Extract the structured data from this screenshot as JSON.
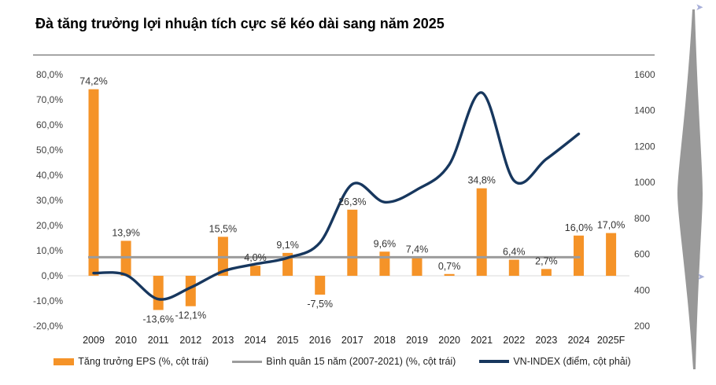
{
  "title": "Đà tăng trưởng lợi nhuận tích cực sẽ kéo dài sang năm 2025",
  "legend": {
    "items": [
      {
        "label": "Tăng trưởng EPS (%, cột trái)"
      },
      {
        "label": "Bình quân 15 năm (2007-2021) (%, cột trái)"
      },
      {
        "label": "VN-INDEX (điểm, cột phải)"
      }
    ]
  },
  "chart_data": {
    "type": "bar+line dual-axis combo",
    "title": "Đà tăng trưởng lợi nhuận tích cực sẽ kéo dài sang năm 2025",
    "categories": [
      "2009",
      "2010",
      "2011",
      "2012",
      "2013",
      "2014",
      "2015",
      "2016",
      "2017",
      "2018",
      "2019",
      "2020",
      "2021",
      "2022",
      "2023",
      "2024",
      "2025F"
    ],
    "series": [
      {
        "name": "Tăng trưởng EPS (%, cột trái)",
        "type": "bar",
        "axis": "left",
        "unit": "%",
        "color": "#F59328",
        "values": [
          74.2,
          13.9,
          -13.6,
          -12.1,
          15.5,
          4.0,
          9.1,
          -7.5,
          26.3,
          9.6,
          7.4,
          0.7,
          34.8,
          6.4,
          2.7,
          16.0,
          17.0
        ],
        "labels": [
          "74,2%",
          "13,9%",
          "-13,6%",
          "-12,1%",
          "15,5%",
          "4,0%",
          "9,1%",
          "-7,5%",
          "26,3%",
          "9,6%",
          "7,4%",
          "0,7%",
          "34,8%",
          "6,4%",
          "2,7%",
          "16,0%",
          "17,0%"
        ]
      },
      {
        "name": "Bình quân 15 năm (2007-2021) (%, cột trái)",
        "type": "reference-line",
        "axis": "left",
        "unit": "%",
        "color": "#9C9C9C",
        "value": 7.4,
        "span_categories": [
          "2009",
          "2024"
        ]
      },
      {
        "name": "VN-INDEX (điểm, cột phải)",
        "type": "line",
        "axis": "right",
        "unit": "điểm",
        "color": "#17375E",
        "categories": [
          "2009",
          "2010",
          "2011",
          "2012",
          "2013",
          "2014",
          "2015",
          "2016",
          "2017",
          "2018",
          "2019",
          "2020",
          "2021",
          "2022",
          "2023",
          "2024"
        ],
        "values": [
          495,
          485,
          350,
          415,
          505,
          545,
          580,
          665,
          990,
          890,
          960,
          1100,
          1500,
          1010,
          1130,
          1270
        ]
      }
    ],
    "left_axis": {
      "min": -20,
      "max": 80,
      "ticks": [
        "80,0%",
        "70,0%",
        "60,0%",
        "50,0%",
        "40,0%",
        "30,0%",
        "20,0%",
        "10,0%",
        "0,0%",
        "-10,0%",
        "-20,0%"
      ]
    },
    "right_axis": {
      "min": 200,
      "max": 1600,
      "ticks": [
        "1600",
        "1400",
        "1200",
        "1000",
        "800",
        "600",
        "400",
        "200"
      ]
    },
    "grid": "zero-line only",
    "legend_position": "bottom"
  },
  "decorations": {
    "chevron_glyph": "➤"
  }
}
